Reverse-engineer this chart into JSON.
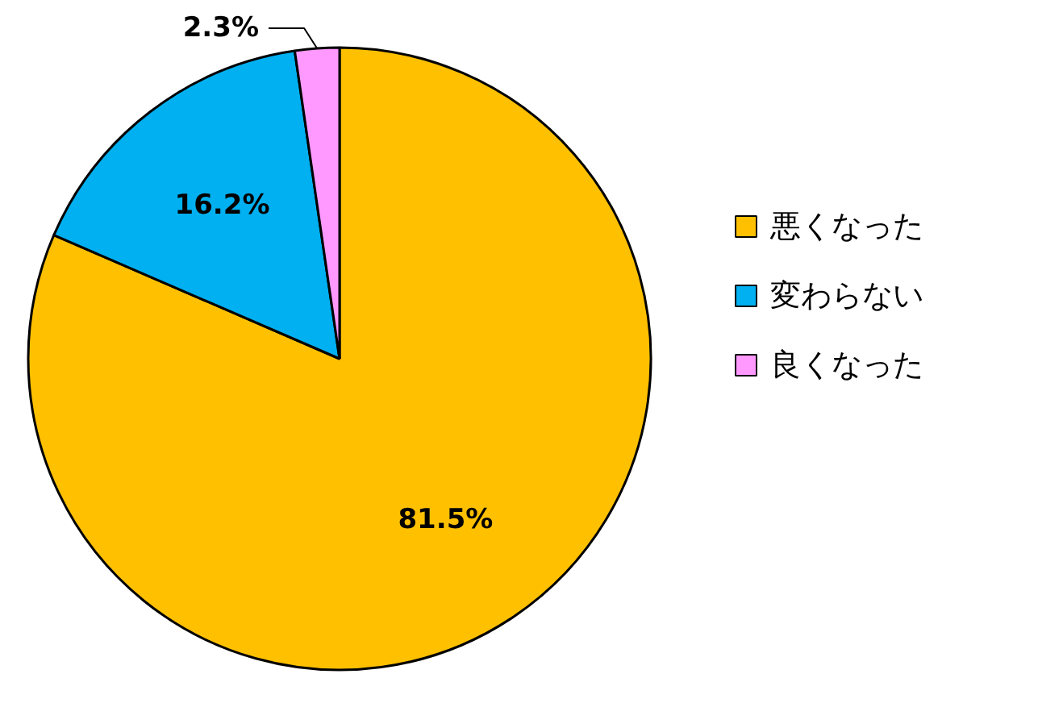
{
  "chart_data": {
    "type": "pie",
    "categories": [
      "悪くなった",
      "変わらない",
      "良くなった"
    ],
    "values": [
      81.5,
      16.2,
      2.3
    ],
    "colors": [
      "#ffc000",
      "#00b0f0",
      "#ff99ff"
    ],
    "value_labels": [
      "81.5%",
      "16.2%",
      "2.3%"
    ],
    "legend": "right"
  }
}
